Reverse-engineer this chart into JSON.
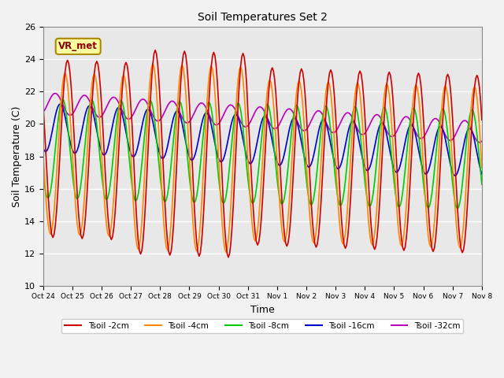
{
  "title": "Soil Temperatures Set 2",
  "xlabel": "Time",
  "ylabel": "Soil Temperature (C)",
  "ylim": [
    10,
    26
  ],
  "yticks": [
    10,
    12,
    14,
    16,
    18,
    20,
    22,
    24,
    26
  ],
  "annotation": "VR_met",
  "annotation_color": "#8B0000",
  "annotation_bg": "#FFFFA0",
  "background_color": "#E8E8E8",
  "plot_bg": "#E8E8E8",
  "series": [
    {
      "label": "Tsoil -2cm",
      "color": "#CC0000"
    },
    {
      "label": "Tsoil -4cm",
      "color": "#FF8800"
    },
    {
      "label": "Tsoil -8cm",
      "color": "#00CC00"
    },
    {
      "label": "Tsoil -16cm",
      "color": "#0000CC"
    },
    {
      "label": "Tsoil -32cm",
      "color": "#BB00BB"
    }
  ],
  "tick_labels": [
    "Oct 24",
    "Oct 25",
    "Oct 26",
    "Oct 27",
    "Oct 28",
    "Oct 29",
    "Oct 30",
    "Oct 31",
    "Nov 1",
    "Nov 2",
    "Nov 3",
    "Nov 4",
    "Nov 5",
    "Nov 6",
    "Nov 7",
    "Nov 8"
  ]
}
